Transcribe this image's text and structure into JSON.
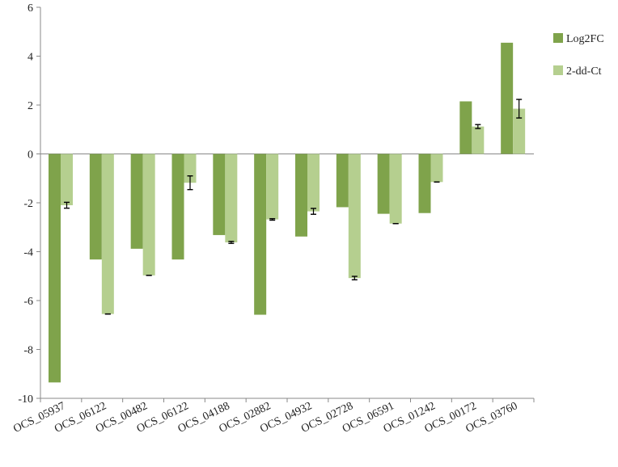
{
  "chart_data": {
    "type": "bar",
    "title": "",
    "xlabel": "",
    "ylabel": "",
    "ylim": [
      -10,
      6
    ],
    "yticks": [
      6,
      4,
      2,
      0,
      -2,
      -4,
      -6,
      -8,
      -10
    ],
    "grid": false,
    "legend_position": "top-right",
    "categories": [
      "OCS_05937",
      "OCS_06122",
      "OCS_00482",
      "OCS_06122",
      "OCS_04188",
      "OCS_02882",
      "OCS_04932",
      "OCS_02728",
      "OCS_06591",
      "OCS_01242",
      "OCS_00172",
      "OCS_03760"
    ],
    "series": [
      {
        "name": "Log2FC",
        "color": "#7fa34b",
        "values": [
          -9.35,
          -4.32,
          -3.88,
          -4.32,
          -3.32,
          -6.58,
          -3.38,
          -2.18,
          -2.45,
          -2.42,
          2.15,
          4.55
        ]
      },
      {
        "name": "2-dd-Ct",
        "color": "#b5cf8f",
        "values": [
          -2.1,
          -6.55,
          -4.97,
          -1.18,
          -3.62,
          -2.68,
          -2.35,
          -5.08,
          -2.85,
          -1.15,
          1.12,
          1.85
        ],
        "errors": [
          0.12,
          0.0,
          0.0,
          0.28,
          0.04,
          0.03,
          0.12,
          0.07,
          0.0,
          0.0,
          0.08,
          0.38
        ]
      }
    ]
  }
}
